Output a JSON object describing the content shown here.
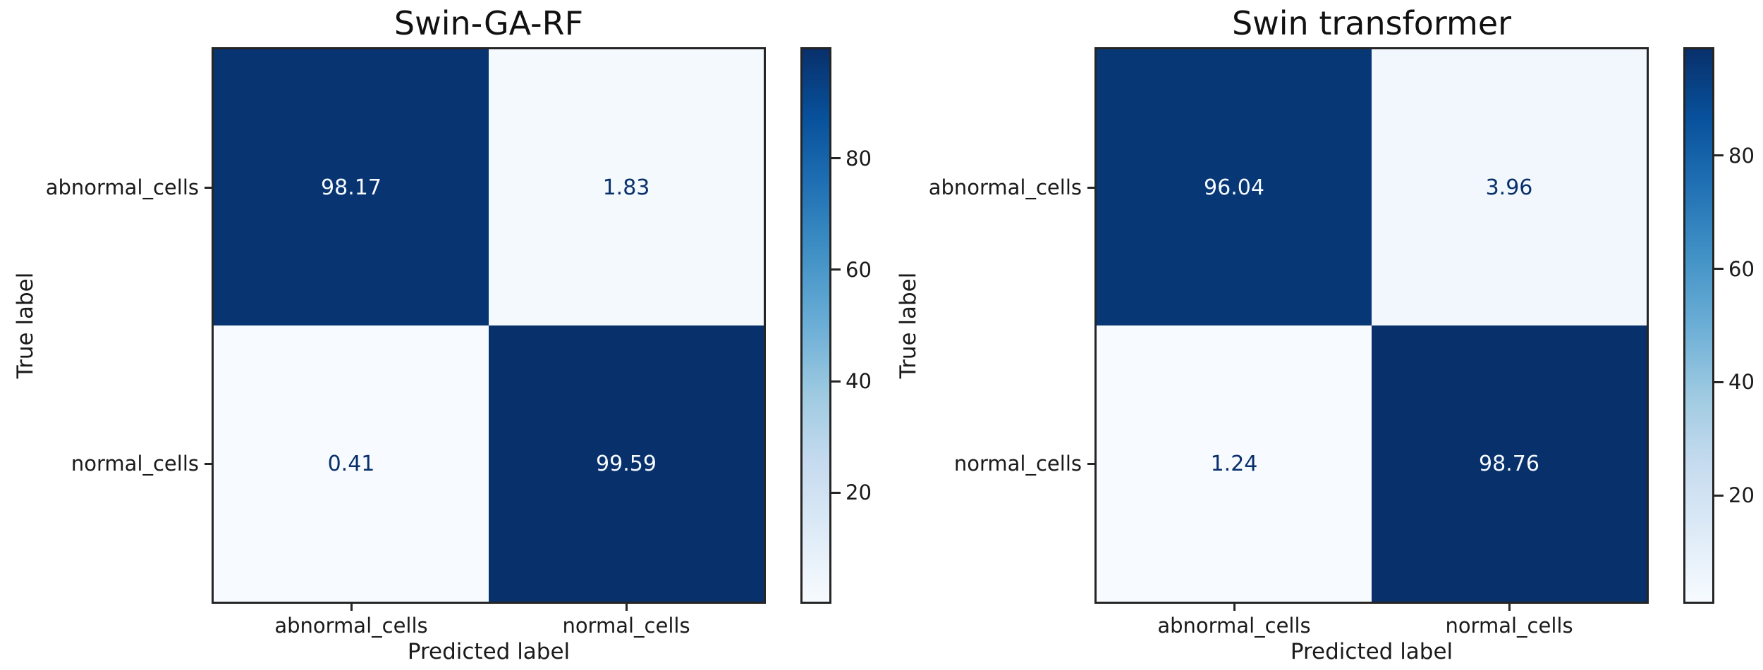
{
  "figure": {
    "background": "#ffffff",
    "colormap_name": "Blues",
    "accent_dark": "#08306b",
    "accent_light": "#f7fbff",
    "axis_color": "#1a1a1a"
  },
  "chart_data": [
    {
      "type": "heatmap",
      "title": "Swin-GA-RF",
      "xlabel": "Predicted label",
      "ylabel": "True label",
      "x_categories": [
        "abnormal_cells",
        "normal_cells"
      ],
      "y_categories": [
        "abnormal_cells",
        "normal_cells"
      ],
      "values": [
        [
          98.17,
          1.83
        ],
        [
          0.41,
          99.59
        ]
      ],
      "vmin": 0.41,
      "vmax": 99.59,
      "colorbar_ticks": [
        20,
        40,
        60,
        80
      ],
      "legend_position": "right-colorbar",
      "grid": "off"
    },
    {
      "type": "heatmap",
      "title": "Swin transformer",
      "xlabel": "Predicted label",
      "ylabel": "True label",
      "x_categories": [
        "abnormal_cells",
        "normal_cells"
      ],
      "y_categories": [
        "abnormal_cells",
        "normal_cells"
      ],
      "values": [
        [
          96.04,
          3.96
        ],
        [
          1.24,
          98.76
        ]
      ],
      "vmin": 1.24,
      "vmax": 98.76,
      "colorbar_ticks": [
        20,
        40,
        60,
        80
      ],
      "legend_position": "right-colorbar",
      "grid": "off"
    }
  ]
}
